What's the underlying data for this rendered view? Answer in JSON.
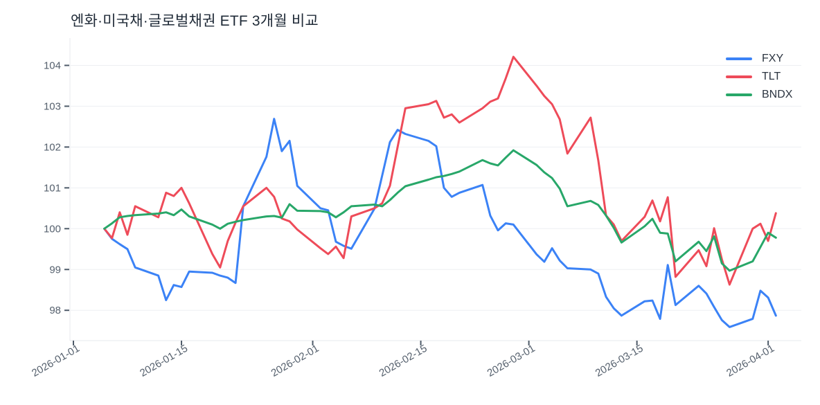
{
  "title": "엔화·미국채·글로벌채권 ETF 3개월 비교",
  "colors": {
    "fxy": "#3b82f6",
    "tlt": "#ee4b59",
    "bndx": "#28a769",
    "grid": "#edeff2",
    "axis_line": "#e7e9ec",
    "tick_mark": "#4d5a68",
    "tick_label": "#55606d",
    "title_text": "#1f2a37"
  },
  "chart_data": {
    "type": "line",
    "title": "엔화·미국채·글로벌채권 ETF 3개월 비교",
    "xlabel": "",
    "ylabel": "",
    "grid": "horizontal",
    "legend_position": "top-right",
    "ylim": [
      97.25,
      104.65
    ],
    "y_ticks": [
      98,
      99,
      100,
      101,
      102,
      103,
      104
    ],
    "x_ticks": [
      "2026-01-01",
      "2026-01-15",
      "2026-02-01",
      "2026-02-15",
      "2026-03-01",
      "2026-03-15",
      "2026-04-01"
    ],
    "x": [
      "2026-01-05",
      "2026-01-06",
      "2026-01-07",
      "2026-01-08",
      "2026-01-09",
      "2026-01-12",
      "2026-01-13",
      "2026-01-14",
      "2026-01-15",
      "2026-01-16",
      "2026-01-19",
      "2026-01-20",
      "2026-01-21",
      "2026-01-22",
      "2026-01-23",
      "2026-01-26",
      "2026-01-27",
      "2026-01-28",
      "2026-01-29",
      "2026-01-30",
      "2026-02-02",
      "2026-02-03",
      "2026-02-04",
      "2026-02-05",
      "2026-02-06",
      "2026-02-09",
      "2026-02-10",
      "2026-02-11",
      "2026-02-12",
      "2026-02-13",
      "2026-02-16",
      "2026-02-17",
      "2026-02-18",
      "2026-02-19",
      "2026-02-20",
      "2026-02-23",
      "2026-02-24",
      "2026-02-25",
      "2026-02-26",
      "2026-02-27",
      "2026-03-02",
      "2026-03-03",
      "2026-03-04",
      "2026-03-05",
      "2026-03-06",
      "2026-03-09",
      "2026-03-10",
      "2026-03-11",
      "2026-03-12",
      "2026-03-13",
      "2026-03-16",
      "2026-03-17",
      "2026-03-18",
      "2026-03-19",
      "2026-03-20",
      "2026-03-23",
      "2026-03-24",
      "2026-03-25",
      "2026-03-26",
      "2026-03-27",
      "2026-03-30",
      "2026-03-31",
      "2026-04-01",
      "2026-04-02"
    ],
    "series": [
      {
        "name": "FXY",
        "color_key": "fxy",
        "values": [
          100.0,
          99.75,
          99.62,
          99.5,
          99.05,
          98.85,
          98.25,
          98.62,
          98.57,
          98.95,
          98.92,
          98.85,
          98.8,
          98.67,
          100.55,
          101.76,
          102.69,
          101.9,
          102.15,
          101.05,
          100.5,
          100.45,
          99.68,
          99.58,
          99.51,
          100.49,
          101.3,
          102.12,
          102.42,
          102.32,
          102.15,
          102.02,
          101.0,
          100.78,
          100.88,
          101.07,
          100.32,
          99.96,
          100.13,
          100.1,
          99.37,
          99.19,
          99.52,
          99.22,
          99.03,
          99.0,
          98.9,
          98.33,
          98.05,
          97.87,
          98.22,
          98.24,
          97.79,
          99.11,
          98.13,
          98.6,
          98.41,
          98.08,
          97.76,
          97.59,
          97.79,
          98.48,
          98.31,
          97.87
        ]
      },
      {
        "name": "TLT",
        "color_key": "tlt",
        "values": [
          100.0,
          99.77,
          100.4,
          99.85,
          100.55,
          100.28,
          100.88,
          100.8,
          101.0,
          100.62,
          99.38,
          99.05,
          99.7,
          100.15,
          100.55,
          101.0,
          100.78,
          100.25,
          100.18,
          99.98,
          99.52,
          99.38,
          99.56,
          99.28,
          100.3,
          100.5,
          100.62,
          101.05,
          102.0,
          102.95,
          103.05,
          103.13,
          102.72,
          102.8,
          102.6,
          102.95,
          103.11,
          103.19,
          103.68,
          104.21,
          103.5,
          103.25,
          103.05,
          102.68,
          101.84,
          102.72,
          101.67,
          100.32,
          100.1,
          99.7,
          100.29,
          100.69,
          100.18,
          100.77,
          98.82,
          99.47,
          99.08,
          100.01,
          99.25,
          98.63,
          100.0,
          100.12,
          99.7,
          100.38
        ]
      },
      {
        "name": "BNDX",
        "color_key": "bndx",
        "values": [
          100.0,
          100.13,
          100.28,
          100.31,
          100.33,
          100.37,
          100.4,
          100.33,
          100.47,
          100.3,
          100.1,
          100.0,
          100.12,
          100.17,
          100.21,
          100.3,
          100.31,
          100.27,
          100.6,
          100.44,
          100.43,
          100.4,
          100.28,
          100.4,
          100.55,
          100.59,
          100.55,
          100.7,
          100.88,
          101.04,
          101.2,
          101.26,
          101.29,
          101.34,
          101.4,
          101.68,
          101.6,
          101.55,
          101.74,
          101.92,
          101.56,
          101.38,
          101.24,
          100.98,
          100.55,
          100.68,
          100.58,
          100.32,
          100.02,
          99.66,
          100.06,
          100.24,
          99.9,
          99.88,
          99.2,
          99.68,
          99.45,
          99.81,
          99.15,
          98.97,
          99.2,
          99.55,
          99.9,
          99.78
        ]
      }
    ]
  }
}
